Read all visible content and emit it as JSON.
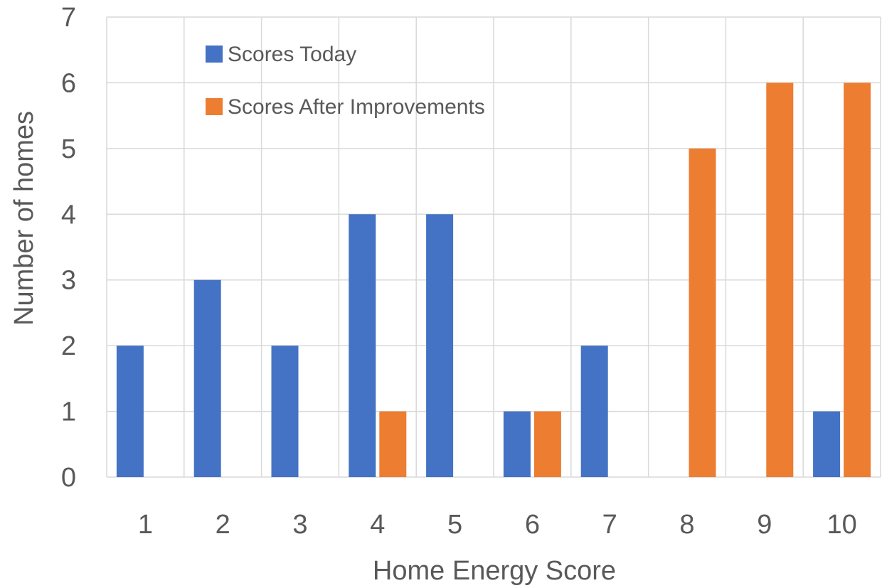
{
  "chart_data": {
    "type": "bar",
    "title": "",
    "xlabel": "Home Energy Score",
    "ylabel": "Number of homes",
    "categories": [
      "1",
      "2",
      "3",
      "4",
      "5",
      "6",
      "7",
      "8",
      "9",
      "10"
    ],
    "series": [
      {
        "name": "Scores Today",
        "color": "#4472c4",
        "values": [
          2,
          3,
          2,
          4,
          4,
          1,
          2,
          0,
          0,
          1
        ]
      },
      {
        "name": "Scores After Improvements",
        "color": "#ed7d31",
        "values": [
          0,
          0,
          0,
          1,
          0,
          1,
          0,
          5,
          6,
          6
        ]
      }
    ],
    "ylim": [
      0,
      7
    ],
    "yticks": [
      0,
      1,
      2,
      3,
      4,
      5,
      6,
      7
    ],
    "grid": true,
    "legend_position": "top-left"
  }
}
